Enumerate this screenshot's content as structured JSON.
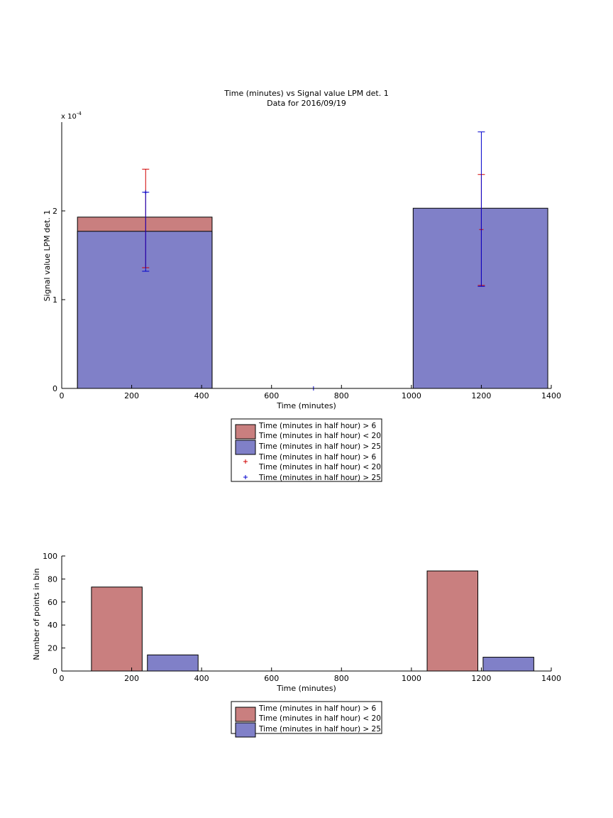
{
  "chart_data": [
    {
      "type": "bar",
      "subtype": "stacked-overlay-with-error-bars",
      "title": "Time (minutes) vs Signal value LPM det. 1",
      "subtitle": "Data for 2016/09/19",
      "xlabel": "Time (minutes)",
      "ylabel": "Signal value LPM det. 1",
      "y_exponent": "x 10",
      "y_exponent_power": "-4",
      "xlim": [
        0,
        1400
      ],
      "ylim": [
        0,
        3.0
      ],
      "xticks": [
        "0",
        "200",
        "400",
        "600",
        "800",
        "1000",
        "1200",
        "1400"
      ],
      "yticks": [
        "0",
        "1",
        "2"
      ],
      "grid": false,
      "legend_position": "below",
      "bins": [
        {
          "x_start": 45,
          "x_end": 430,
          "center": 240
        },
        {
          "x_start": 1005,
          "x_end": 1390,
          "center": 1200
        }
      ],
      "series": [
        {
          "name": "Time (minutes in half hour) > 6\nTime (minutes in half hour) < 20",
          "color": "#c97f7f",
          "values": [
            1.93,
            0
          ]
        },
        {
          "name": "Time (minutes in half hour) > 25",
          "color": "#8080c8",
          "values": [
            1.77,
            2.03
          ]
        }
      ],
      "error_bars": [
        {
          "name": "Time (minutes in half hour) > 6\nTime (minutes in half hour) < 20",
          "color": "#d00000",
          "marker": "+",
          "points": [
            {
              "x": 240,
              "y": null,
              "low": 1.36,
              "high": 2.47
            },
            {
              "x": 1200,
              "y": 1.79,
              "low": 1.16,
              "high": 2.41
            }
          ]
        },
        {
          "name": "Time (minutes in half hour) > 25",
          "color": "#0000cc",
          "marker": "+",
          "points": [
            {
              "x": 240,
              "y": 2.21,
              "low": 1.32,
              "high": 2.21
            },
            {
              "x": 1200,
              "y": null,
              "low": 1.15,
              "high": 2.89
            },
            {
              "x": 720,
              "y": 0,
              "low": 0,
              "high": 0
            }
          ]
        }
      ]
    },
    {
      "type": "bar",
      "title": "",
      "xlabel": "Time (minutes)",
      "ylabel": "Number of points in bin",
      "xlim": [
        0,
        1400
      ],
      "ylim": [
        0,
        100
      ],
      "xticks": [
        "0",
        "200",
        "400",
        "600",
        "800",
        "1000",
        "1200",
        "1400"
      ],
      "yticks": [
        "0",
        "20",
        "40",
        "60",
        "80",
        "100"
      ],
      "grid": false,
      "legend_position": "below",
      "series": [
        {
          "name": "Time (minutes in half hour) > 6\nTime (minutes in half hour) < 20",
          "color": "#c97f7f",
          "bars": [
            {
              "x_start": 85,
              "x_end": 230,
              "value": 73
            },
            {
              "x_start": 1045,
              "x_end": 1190,
              "value": 87
            }
          ]
        },
        {
          "name": "Time (minutes in half hour) > 25",
          "color": "#8080c8",
          "bars": [
            {
              "x_start": 245,
              "x_end": 390,
              "value": 14
            },
            {
              "x_start": 1205,
              "x_end": 1350,
              "value": 12
            }
          ]
        }
      ]
    }
  ]
}
